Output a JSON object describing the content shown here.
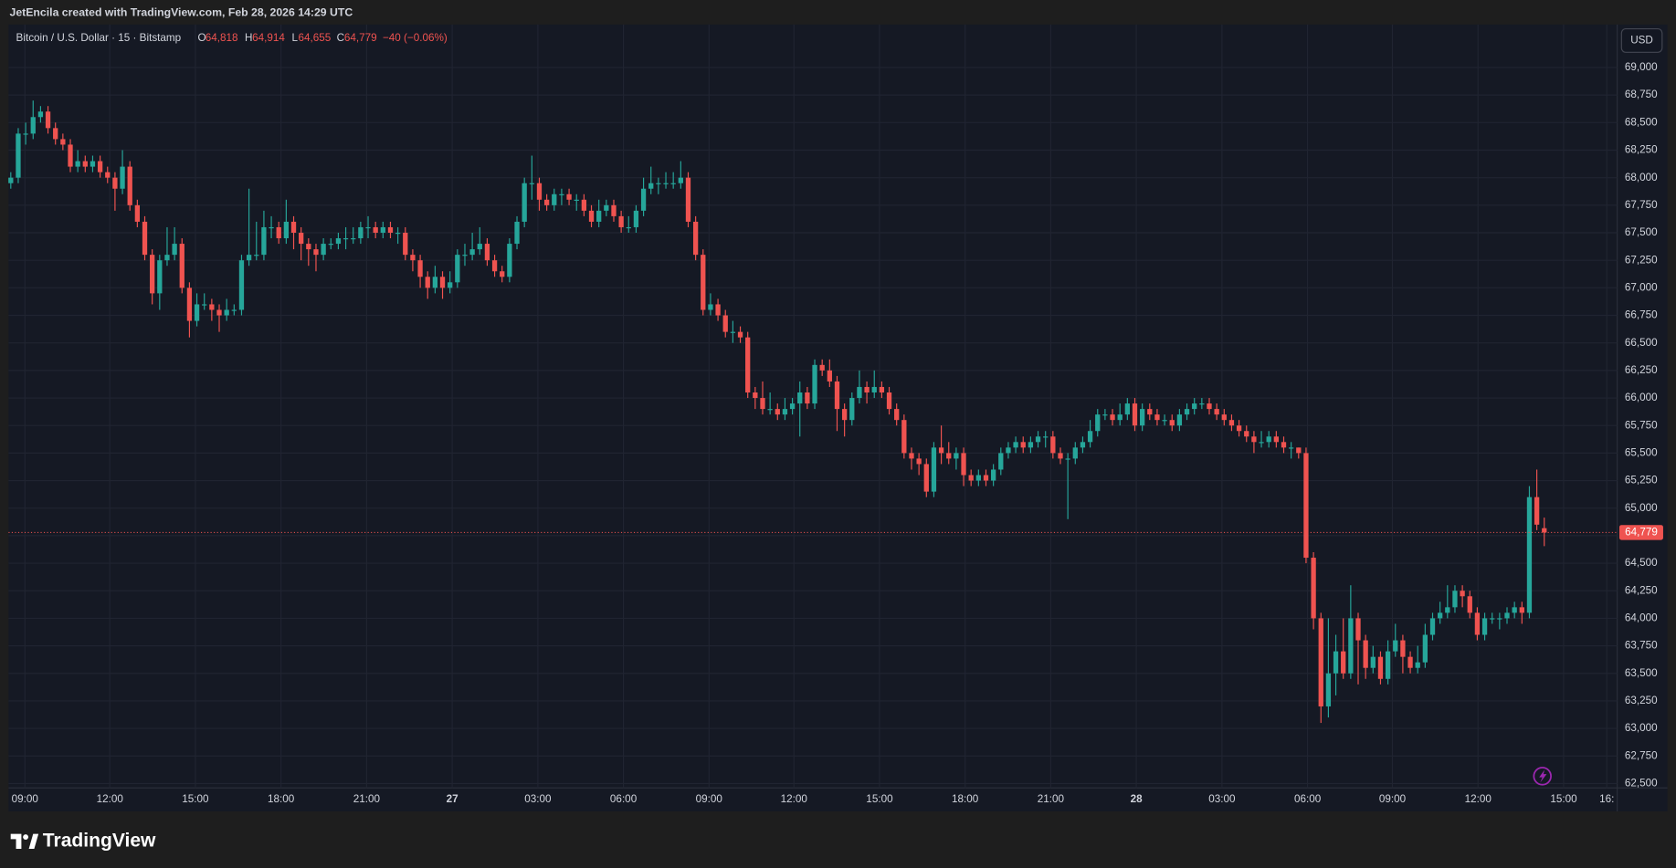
{
  "header": {
    "credit": "JetEncila created with TradingView.com, Feb 28, 2026 14:29 UTC",
    "symbol": "Bitcoin / U.S. Dollar · 15 · Bitstamp",
    "ohlc": [
      {
        "label": "O",
        "value": "64,818"
      },
      {
        "label": "H",
        "value": "64,914"
      },
      {
        "label": "L",
        "value": "64,655"
      },
      {
        "label": "C",
        "value": "64,779"
      }
    ],
    "change": "−40 (−0.06%)",
    "currency": "USD",
    "brand": "TradingView"
  },
  "chart_data": {
    "type": "candlestick",
    "up_color": "#26a69a",
    "down_color": "#ef5350",
    "grid": true,
    "xlim": [
      -0.3,
      215.8
    ],
    "xticks": [
      {
        "value": 1.9,
        "label": "09:00"
      },
      {
        "value": 13.3,
        "label": "12:00"
      },
      {
        "value": 24.8,
        "label": "15:00"
      },
      {
        "value": 36.3,
        "label": "18:00"
      },
      {
        "value": 47.8,
        "label": "21:00"
      },
      {
        "value": 59.3,
        "label": "27"
      },
      {
        "value": 70.8,
        "label": "03:00"
      },
      {
        "value": 82.3,
        "label": "06:00"
      },
      {
        "value": 93.8,
        "label": "09:00"
      },
      {
        "value": 105.2,
        "label": "12:00"
      },
      {
        "value": 116.7,
        "label": "15:00"
      },
      {
        "value": 128.2,
        "label": "18:00"
      },
      {
        "value": 139.7,
        "label": "21:00"
      },
      {
        "value": 151.2,
        "label": "28"
      },
      {
        "value": 162.7,
        "label": "03:00"
      },
      {
        "value": 174.2,
        "label": "06:00"
      },
      {
        "value": 185.6,
        "label": "09:00"
      },
      {
        "value": 197.1,
        "label": "12:00"
      },
      {
        "value": 208.6,
        "label": "15:00"
      },
      {
        "value": 214.4,
        "label": "16:"
      }
    ],
    "ylim": [
      62460,
      69390
    ],
    "yticks": [
      {
        "value": 62500,
        "label": "62,500"
      },
      {
        "value": 62750,
        "label": "62,750"
      },
      {
        "value": 63000,
        "label": "63,000"
      },
      {
        "value": 63250,
        "label": "63,250"
      },
      {
        "value": 63500,
        "label": "63,500"
      },
      {
        "value": 63750,
        "label": "63,750"
      },
      {
        "value": 64000,
        "label": "64,000"
      },
      {
        "value": 64250,
        "label": "64,250"
      },
      {
        "value": 64500,
        "label": "64,500"
      },
      {
        "value": 64750,
        "label": "64,750"
      },
      {
        "value": 65000,
        "label": "65,000"
      },
      {
        "value": 65250,
        "label": "65,250"
      },
      {
        "value": 65500,
        "label": "65,500"
      },
      {
        "value": 65750,
        "label": "65,750"
      },
      {
        "value": 66000,
        "label": "66,000"
      },
      {
        "value": 66250,
        "label": "66,250"
      },
      {
        "value": 66500,
        "label": "66,500"
      },
      {
        "value": 66750,
        "label": "66,750"
      },
      {
        "value": 67000,
        "label": "67,000"
      },
      {
        "value": 67250,
        "label": "67,250"
      },
      {
        "value": 67500,
        "label": "67,500"
      },
      {
        "value": 67750,
        "label": "67,750"
      },
      {
        "value": 68000,
        "label": "68,000"
      },
      {
        "value": 68250,
        "label": "68,250"
      },
      {
        "value": 68500,
        "label": "68,500"
      },
      {
        "value": 68750,
        "label": "68,750"
      },
      {
        "value": 69000,
        "label": "69,000"
      }
    ],
    "last_price": {
      "value": 64779,
      "label": "64,779"
    },
    "open": [
      67950,
      68000,
      68400,
      68400,
      68550,
      68600,
      68450,
      68350,
      68300,
      68100,
      68150,
      68100,
      68150,
      68050,
      68000,
      67900,
      68100,
      67750,
      67600,
      67300,
      66950,
      67250,
      67300,
      67400,
      67000,
      66700,
      66850,
      66850,
      66800,
      66750,
      66800,
      66800,
      67250,
      67300,
      67300,
      67550,
      67550,
      67450,
      67600,
      67500,
      67400,
      67350,
      67300,
      67400,
      67400,
      67450,
      67450,
      67450,
      67550,
      67550,
      67500,
      67550,
      67500,
      67500,
      67300,
      67250,
      67100,
      67000,
      67100,
      67000,
      67050,
      67300,
      67300,
      67350,
      67400,
      67250,
      67150,
      67100,
      67400,
      67600,
      67950,
      67950,
      67800,
      67750,
      67850,
      67850,
      67800,
      67800,
      67700,
      67600,
      67700,
      67750,
      67650,
      67550,
      67550,
      67700,
      67900,
      67950,
      67950,
      67950,
      67950,
      68000,
      67600,
      67300,
      66800,
      66850,
      66750,
      66600,
      66600,
      66550,
      66050,
      66000,
      65900,
      65900,
      65850,
      65900,
      65950,
      66050,
      65950,
      66300,
      66250,
      66150,
      65900,
      65800,
      66000,
      66100,
      66050,
      66100,
      66050,
      65900,
      65800,
      65500,
      65450,
      65400,
      65150,
      65550,
      65500,
      65450,
      65500,
      65300,
      65250,
      65300,
      65250,
      65350,
      65500,
      65550,
      65600,
      65550,
      65600,
      65650,
      65650,
      65500,
      65450,
      65450,
      65550,
      65600,
      65700,
      65850,
      65850,
      65800,
      65850,
      65950,
      65750,
      65900,
      65850,
      65800,
      65800,
      65750,
      65850,
      65900,
      65950,
      65950,
      65900,
      65850,
      65800,
      65750,
      65700,
      65650,
      65600,
      65600,
      65650,
      65600,
      65550,
      65550,
      65500,
      64550,
      64000,
      63200,
      63500,
      63700,
      63500,
      64000,
      63800,
      63550,
      63650,
      63450,
      63700,
      63800,
      63650,
      63550,
      63600,
      63850,
      64000,
      64050,
      64100,
      64250,
      64200,
      64050,
      63850,
      64000,
      64000,
      64000,
      64050,
      64100,
      64050,
      65100,
      64818
    ],
    "high": [
      68050,
      68450,
      68500,
      68700,
      68650,
      68650,
      68500,
      68400,
      68350,
      68250,
      68200,
      68200,
      68200,
      68100,
      68050,
      68250,
      68150,
      67800,
      67650,
      67350,
      67300,
      67550,
      67550,
      67450,
      67050,
      66950,
      66950,
      66900,
      66850,
      66900,
      66850,
      67300,
      67900,
      67600,
      67700,
      67650,
      67600,
      67800,
      67650,
      67550,
      67450,
      67400,
      67450,
      67450,
      67500,
      67550,
      67550,
      67600,
      67650,
      67600,
      67600,
      67600,
      67550,
      67550,
      67350,
      67300,
      67150,
      67200,
      67150,
      67150,
      67350,
      67400,
      67500,
      67550,
      67450,
      67300,
      67200,
      67450,
      67650,
      68000,
      68200,
      68000,
      67850,
      67900,
      67900,
      67900,
      67850,
      67850,
      67750,
      67800,
      67800,
      67800,
      67700,
      67650,
      67750,
      68000,
      68100,
      68000,
      68050,
      68050,
      68150,
      68050,
      67650,
      67350,
      66950,
      66900,
      66800,
      66700,
      66650,
      66600,
      66100,
      66150,
      66050,
      65950,
      66000,
      66000,
      66150,
      66100,
      66350,
      66350,
      66350,
      66200,
      65950,
      66050,
      66250,
      66150,
      66250,
      66150,
      66100,
      65950,
      65850,
      65550,
      65500,
      65450,
      65600,
      65750,
      65600,
      65550,
      65550,
      65350,
      65350,
      65350,
      65400,
      65550,
      65600,
      65650,
      65650,
      65650,
      65700,
      65700,
      65700,
      65550,
      65500,
      65600,
      65650,
      65800,
      65900,
      65900,
      65900,
      65950,
      66000,
      66000,
      65950,
      65950,
      65900,
      65850,
      65850,
      65900,
      65950,
      66000,
      66000,
      66000,
      65950,
      65900,
      65850,
      65800,
      65750,
      65700,
      65700,
      65700,
      65700,
      65650,
      65600,
      65550,
      65550,
      64600,
      64050,
      64000,
      63850,
      64000,
      64300,
      64050,
      63850,
      63750,
      63700,
      63800,
      63950,
      63850,
      63700,
      63750,
      63950,
      64050,
      64150,
      64300,
      64300,
      64300,
      64250,
      64100,
      64050,
      64050,
      64050,
      64100,
      64150,
      64150,
      65200,
      65350,
      64914
    ],
    "low": [
      67900,
      67950,
      68300,
      68350,
      68500,
      68400,
      68300,
      68250,
      68050,
      68050,
      68050,
      68050,
      68000,
      67950,
      67700,
      67850,
      67700,
      67550,
      67250,
      66850,
      66800,
      67200,
      67250,
      66950,
      66550,
      66650,
      66800,
      66700,
      66600,
      66700,
      66750,
      66750,
      67200,
      67250,
      67250,
      67450,
      67400,
      67400,
      67350,
      67250,
      67200,
      67150,
      67250,
      67350,
      67350,
      67350,
      67400,
      67400,
      67450,
      67450,
      67450,
      67450,
      67400,
      67250,
      67150,
      67000,
      66900,
      66950,
      66900,
      66950,
      67000,
      67200,
      67250,
      67300,
      67200,
      67100,
      67050,
      67050,
      67350,
      67550,
      67800,
      67700,
      67700,
      67700,
      67750,
      67750,
      67700,
      67650,
      67550,
      67550,
      67650,
      67600,
      67500,
      67500,
      67500,
      67650,
      67850,
      67850,
      67900,
      67900,
      67900,
      67550,
      67250,
      66750,
      66750,
      66700,
      66550,
      66500,
      66500,
      66000,
      65900,
      65850,
      65850,
      65800,
      65800,
      65850,
      65650,
      65900,
      65900,
      66200,
      66100,
      65700,
      65650,
      65750,
      65950,
      65950,
      66000,
      66000,
      65850,
      65750,
      65450,
      65350,
      65300,
      65100,
      65100,
      65400,
      65400,
      65350,
      65200,
      65200,
      65200,
      65200,
      65200,
      65300,
      65450,
      65500,
      65500,
      65500,
      65550,
      65550,
      65450,
      65400,
      64900,
      65400,
      65500,
      65550,
      65650,
      65800,
      65750,
      65750,
      65800,
      65700,
      65700,
      65800,
      65750,
      65750,
      65700,
      65700,
      65800,
      65850,
      65900,
      65850,
      65800,
      65750,
      65700,
      65650,
      65600,
      65500,
      65550,
      65550,
      65550,
      65500,
      65450,
      65450,
      64500,
      63900,
      63050,
      63100,
      63300,
      63450,
      63450,
      63400,
      63450,
      63500,
      63400,
      63400,
      63650,
      63500,
      63500,
      63500,
      63550,
      63800,
      63950,
      64000,
      64050,
      64100,
      64000,
      63800,
      63800,
      63950,
      63900,
      63950,
      64000,
      63950,
      64000,
      64800,
      64655
    ],
    "close": [
      68000,
      68400,
      68400,
      68550,
      68600,
      68450,
      68350,
      68300,
      68100,
      68150,
      68100,
      68150,
      68050,
      68000,
      67900,
      68100,
      67750,
      67600,
      67300,
      66950,
      67250,
      67300,
      67400,
      67000,
      66700,
      66850,
      66850,
      66800,
      66750,
      66800,
      66800,
      67250,
      67300,
      67300,
      67550,
      67550,
      67450,
      67600,
      67500,
      67400,
      67350,
      67300,
      67400,
      67400,
      67450,
      67450,
      67450,
      67550,
      67550,
      67500,
      67550,
      67500,
      67500,
      67300,
      67250,
      67100,
      67000,
      67100,
      67000,
      67050,
      67300,
      67300,
      67350,
      67400,
      67250,
      67150,
      67100,
      67400,
      67600,
      67950,
      67950,
      67800,
      67750,
      67850,
      67850,
      67800,
      67800,
      67700,
      67600,
      67700,
      67750,
      67650,
      67550,
      67550,
      67700,
      67900,
      67950,
      67950,
      67950,
      67950,
      68000,
      67600,
      67300,
      66800,
      66850,
      66750,
      66600,
      66600,
      66550,
      66050,
      66000,
      65900,
      65900,
      65850,
      65900,
      65950,
      66050,
      65950,
      66300,
      66250,
      66150,
      65900,
      65800,
      66000,
      66100,
      66050,
      66100,
      66050,
      65900,
      65800,
      65500,
      65450,
      65400,
      65150,
      65550,
      65500,
      65450,
      65500,
      65300,
      65250,
      65300,
      65250,
      65350,
      65500,
      65550,
      65600,
      65550,
      65600,
      65650,
      65650,
      65500,
      65450,
      65450,
      65550,
      65600,
      65700,
      65850,
      65850,
      65800,
      65850,
      65950,
      65750,
      65900,
      65850,
      65800,
      65800,
      65750,
      65850,
      65900,
      65950,
      65950,
      65900,
      65850,
      65800,
      65750,
      65700,
      65650,
      65600,
      65600,
      65650,
      65600,
      65550,
      65550,
      65500,
      64550,
      64000,
      63200,
      63500,
      63700,
      63500,
      64000,
      63800,
      63550,
      63650,
      63450,
      63700,
      63800,
      63650,
      63550,
      63600,
      63850,
      64000,
      64050,
      64100,
      64250,
      64200,
      64050,
      63850,
      64000,
      64000,
      64000,
      64050,
      64100,
      64050,
      65100,
      64850,
      64779
    ]
  }
}
